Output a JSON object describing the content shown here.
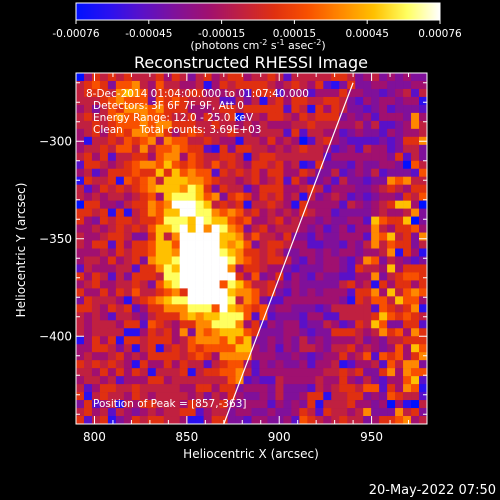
{
  "colorbar": {
    "ticks": [
      "-0.00076",
      "-0.00045",
      "-0.00015",
      "0.00015",
      "0.00045",
      "0.00076"
    ],
    "unit_label": "(photons cm",
    "unit_sup1": "-2",
    "unit_mid": " s",
    "unit_sup2": "-1",
    "unit_mid2": " asec",
    "unit_sup3": "-2",
    "unit_end": ")",
    "colors": [
      "#0010ff",
      "#2a10f0",
      "#5a10c8",
      "#80109a",
      "#a01070",
      "#c02040",
      "#e03010",
      "#f85000",
      "#ff8800",
      "#ffc000",
      "#ffff60",
      "#ffffff"
    ]
  },
  "chart_data": {
    "type": "heatmap",
    "title": "Reconstructed RHESSI Image",
    "xlabel": "Heliocentric X (arcsec)",
    "ylabel": "Heliocentric Y (arcsec)",
    "xlim": [
      790,
      980
    ],
    "ylim": [
      -445,
      -265
    ],
    "x_ticks": [
      800,
      850,
      900,
      950
    ],
    "y_ticks": [
      -300,
      -350,
      -400
    ],
    "x_tick_labels": [
      "800",
      "850",
      "900",
      "950"
    ],
    "y_tick_labels": [
      "−300",
      "−350",
      "−400"
    ],
    "color_range": [
      -0.00076,
      0.00076
    ],
    "limb_line": {
      "x": [
        870,
        940
      ],
      "y": [
        -445,
        -270
      ]
    },
    "annotations": [
      "8-Dec-2014 01:04:00.000 to 01:07:40.000",
      "Detectors: 3F 6F 7F 9F, Att 0",
      "Energy Range: 12.0 - 25.0 keV",
      "Clean     Total counts: 3.69E+03"
    ],
    "peak_label": "Position of Peak = [857,-363]",
    "peak": [
      857,
      -363
    ]
  },
  "timestamp": "20-May-2022 07:50"
}
